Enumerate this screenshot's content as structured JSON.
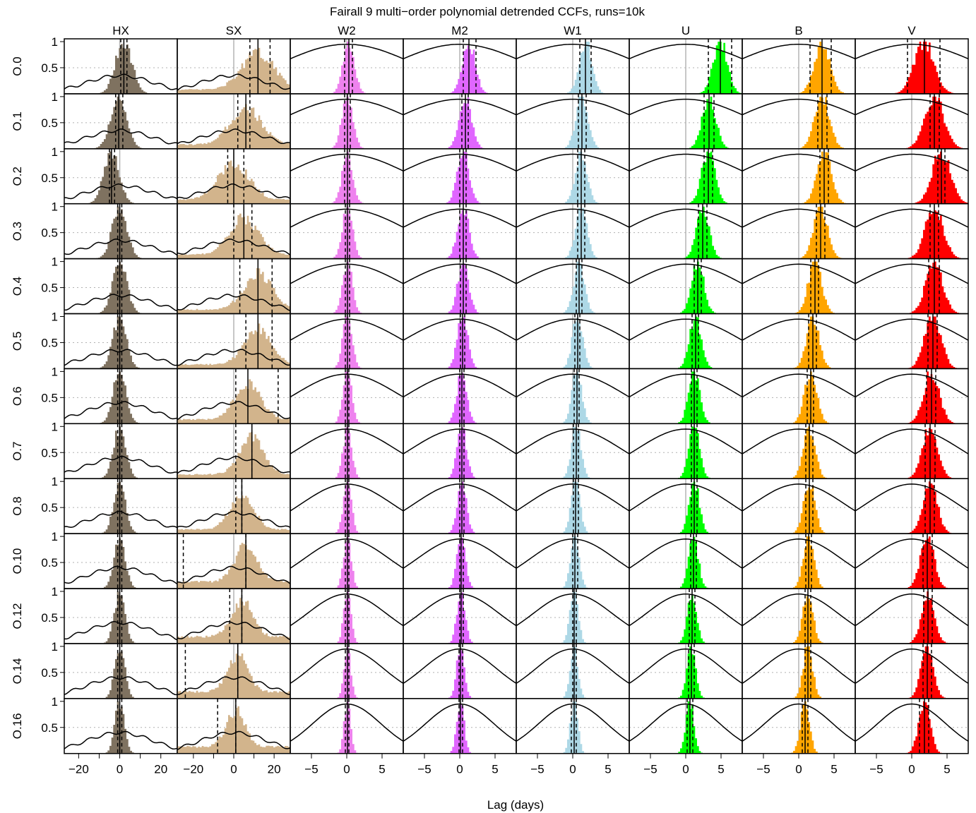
{
  "chart_data": {
    "type": "grid-of-histograms-with-ccf-curves",
    "title": "Fairall 9 multi−order polynomial detrended CCFs, runs=10k",
    "xlabel": "Lag (days)",
    "columns": [
      {
        "label": "HX",
        "color": "#7f7260",
        "xlim": [
          -27,
          28
        ],
        "ticks": [
          -20,
          -10,
          0,
          10,
          20
        ],
        "tick_labels": [
          "−20",
          "0",
          "20"
        ],
        "labeled_ticks": [
          -20,
          0,
          20
        ],
        "hist_width": 4
      },
      {
        "label": "SX",
        "color": "#d2b48c",
        "xlim": [
          -28,
          28
        ],
        "ticks": [
          -20,
          -10,
          0,
          10,
          20
        ],
        "tick_labels": [
          "−20",
          "0",
          "20"
        ],
        "labeled_ticks": [
          -20,
          0,
          20
        ],
        "hist_width": 8
      },
      {
        "label": "W2",
        "color": "#ee82ee",
        "xlim": [
          -8,
          8
        ],
        "ticks": [
          -5,
          0,
          5
        ],
        "tick_labels": [
          "−5",
          "0",
          "5"
        ],
        "labeled_ticks": [
          -5,
          0,
          5
        ],
        "hist_width": 0.8
      },
      {
        "label": "M2",
        "color": "#e066ff",
        "xlim": [
          -8,
          8
        ],
        "ticks": [
          -5,
          0,
          5
        ],
        "tick_labels": [
          "−5",
          "0",
          "5"
        ],
        "labeled_ticks": [
          -5,
          0,
          5
        ],
        "hist_width": 0.9
      },
      {
        "label": "W1",
        "color": "#add8e6",
        "xlim": [
          -8,
          8
        ],
        "ticks": [
          -5,
          0,
          5
        ],
        "tick_labels": [
          "−5",
          "0",
          "5"
        ],
        "labeled_ticks": [
          -5,
          0,
          5
        ],
        "hist_width": 0.9
      },
      {
        "label": "U",
        "color": "#00ff00",
        "xlim": [
          -8,
          8
        ],
        "ticks": [
          -5,
          0,
          5
        ],
        "tick_labels": [
          "−5",
          "0",
          "5"
        ],
        "labeled_ticks": [
          -5,
          0,
          5
        ],
        "hist_width": 1.0
      },
      {
        "label": "B",
        "color": "#ffa500",
        "xlim": [
          -8,
          8
        ],
        "ticks": [
          -5,
          0,
          5
        ],
        "tick_labels": [
          "−5",
          "0",
          "5"
        ],
        "labeled_ticks": [
          -5,
          0,
          5
        ],
        "hist_width": 1.1
      },
      {
        "label": "V",
        "color": "#ff0000",
        "xlim": [
          -8,
          8
        ],
        "ticks": [
          -5,
          0,
          5
        ],
        "tick_labels": [
          "−5",
          "0",
          "5"
        ],
        "labeled_ticks": [
          -5,
          0,
          5
        ],
        "hist_width": 1.4
      }
    ],
    "rows": [
      "O.0",
      "O.1",
      "O.2",
      "O.3",
      "O.4",
      "O.5",
      "O.6",
      "O.7",
      "O.8",
      "O.10",
      "O.12",
      "O.14",
      "O.16"
    ],
    "ylim": [
      0,
      1
    ],
    "yticks": [
      0.5,
      1
    ],
    "ytick_labels": [
      "0.5",
      "1"
    ],
    "lag_median": [
      [
        2,
        12,
        0.3,
        1.3,
        1.8,
        4.9,
        3.3,
        1.8
      ],
      [
        -0.5,
        6,
        0.1,
        0.8,
        1.3,
        3.3,
        3.3,
        3.2
      ],
      [
        -4,
        0,
        0.1,
        0.5,
        1.2,
        3.2,
        3.6,
        4.2
      ],
      [
        0,
        5,
        0.1,
        0.5,
        1.2,
        2.4,
        3.1,
        3.2
      ],
      [
        0,
        12,
        0.1,
        0.5,
        0.9,
        1.7,
        2.3,
        3.2
      ],
      [
        0,
        12,
        0.1,
        0.4,
        0.7,
        1.4,
        2.0,
        3.0
      ],
      [
        0,
        7,
        0.1,
        0.3,
        0.6,
        1.2,
        1.7,
        2.8
      ],
      [
        0,
        9,
        0.1,
        0.3,
        0.5,
        1.2,
        1.5,
        2.6
      ],
      [
        0,
        4,
        0.1,
        0.3,
        0.4,
        1.2,
        1.5,
        2.6
      ],
      [
        0,
        6,
        0.1,
        0.2,
        0.3,
        1.1,
        1.4,
        2.2
      ],
      [
        0,
        4,
        0.1,
        0.2,
        0.2,
        0.9,
        1.3,
        2.3
      ],
      [
        0,
        2,
        0.1,
        0.1,
        0.2,
        0.8,
        1.3,
        2.2
      ],
      [
        0,
        1,
        0.1,
        0.1,
        0.2,
        0.6,
        0.9,
        1.8
      ]
    ],
    "lag_interval": [
      [
        [
          0.5,
          3.5
        ],
        [
          8,
          18
        ],
        [
          -0.3,
          0.8
        ],
        [
          0.5,
          2.3
        ],
        [
          1.0,
          2.6
        ],
        [
          3.2,
          6.5
        ],
        [
          1.6,
          4.6
        ],
        [
          -0.6,
          4.0
        ]
      ],
      [
        [
          -2,
          1.5
        ],
        [
          2,
          8
        ],
        [
          -0.3,
          0.5
        ],
        [
          0.3,
          1.2
        ],
        [
          0.8,
          1.9
        ],
        [
          2.6,
          4.0
        ],
        [
          2.7,
          4.0
        ],
        [
          2.6,
          3.9
        ]
      ],
      [
        [
          -5,
          -2.5
        ],
        [
          -3,
          5
        ],
        [
          -0.3,
          0.4
        ],
        [
          0.0,
          0.9
        ],
        [
          0.7,
          1.7
        ],
        [
          2.6,
          3.8
        ],
        [
          3.0,
          4.2
        ],
        [
          3.7,
          4.7
        ]
      ],
      [
        [
          -1,
          1
        ],
        [
          0,
          9
        ],
        [
          -0.2,
          0.4
        ],
        [
          0.0,
          0.9
        ],
        [
          0.7,
          1.7
        ],
        [
          1.8,
          3.0
        ],
        [
          2.5,
          3.7
        ],
        [
          2.6,
          3.8
        ]
      ],
      [
        [
          -1,
          1
        ],
        [
          3,
          19
        ],
        [
          -0.2,
          0.4
        ],
        [
          0.1,
          0.9
        ],
        [
          0.5,
          1.3
        ],
        [
          1.2,
          2.2
        ],
        [
          1.7,
          2.8
        ],
        [
          2.4,
          3.9
        ]
      ],
      [
        [
          -1,
          1
        ],
        [
          6,
          19
        ],
        [
          -0.2,
          0.4
        ],
        [
          0.1,
          0.7
        ],
        [
          0.3,
          1.0
        ],
        [
          0.9,
          1.8
        ],
        [
          1.4,
          2.5
        ],
        [
          2.3,
          3.6
        ]
      ],
      [
        [
          -1,
          1
        ],
        [
          1,
          22
        ],
        [
          -0.2,
          0.3
        ],
        [
          0.0,
          0.6
        ],
        [
          0.2,
          0.9
        ],
        [
          0.8,
          1.6
        ],
        [
          1.2,
          2.1
        ],
        [
          2.1,
          3.4
        ]
      ],
      [
        [
          -1,
          1
        ],
        [
          1,
          9
        ],
        [
          -0.2,
          0.3
        ],
        [
          0.0,
          0.6
        ],
        [
          0.1,
          0.8
        ],
        [
          0.8,
          1.6
        ],
        [
          1.0,
          2.0
        ],
        [
          1.9,
          3.3
        ]
      ],
      [
        [
          -1,
          1
        ],
        [
          1,
          4
        ],
        [
          -0.2,
          0.3
        ],
        [
          0.0,
          0.6
        ],
        [
          0.1,
          0.8
        ],
        [
          0.8,
          1.6
        ],
        [
          1.0,
          2.0
        ],
        [
          1.9,
          3.2
        ]
      ],
      [
        [
          -1,
          1
        ],
        [
          -25,
          6
        ],
        [
          -0.2,
          0.3
        ],
        [
          0.0,
          0.5
        ],
        [
          0.0,
          0.7
        ],
        [
          0.7,
          1.5
        ],
        [
          1.0,
          1.8
        ],
        [
          1.6,
          2.9
        ]
      ],
      [
        [
          -1,
          1
        ],
        [
          -2,
          4
        ],
        [
          -0.2,
          0.3
        ],
        [
          0.0,
          0.5
        ],
        [
          0.0,
          0.5
        ],
        [
          0.5,
          1.3
        ],
        [
          0.9,
          1.7
        ],
        [
          1.7,
          2.9
        ]
      ],
      [
        [
          -1,
          1
        ],
        [
          -24,
          2
        ],
        [
          -0.2,
          0.3
        ],
        [
          -0.1,
          0.4
        ],
        [
          0.0,
          0.5
        ],
        [
          0.4,
          1.2
        ],
        [
          0.9,
          1.7
        ],
        [
          1.6,
          2.8
        ]
      ],
      [
        [
          -1,
          1
        ],
        [
          -8,
          1
        ],
        [
          -0.2,
          0.3
        ],
        [
          -0.1,
          0.4
        ],
        [
          -0.2,
          0.5
        ],
        [
          0.2,
          1.0
        ],
        [
          0.5,
          1.3
        ],
        [
          1.1,
          2.4
        ]
      ]
    ]
  }
}
